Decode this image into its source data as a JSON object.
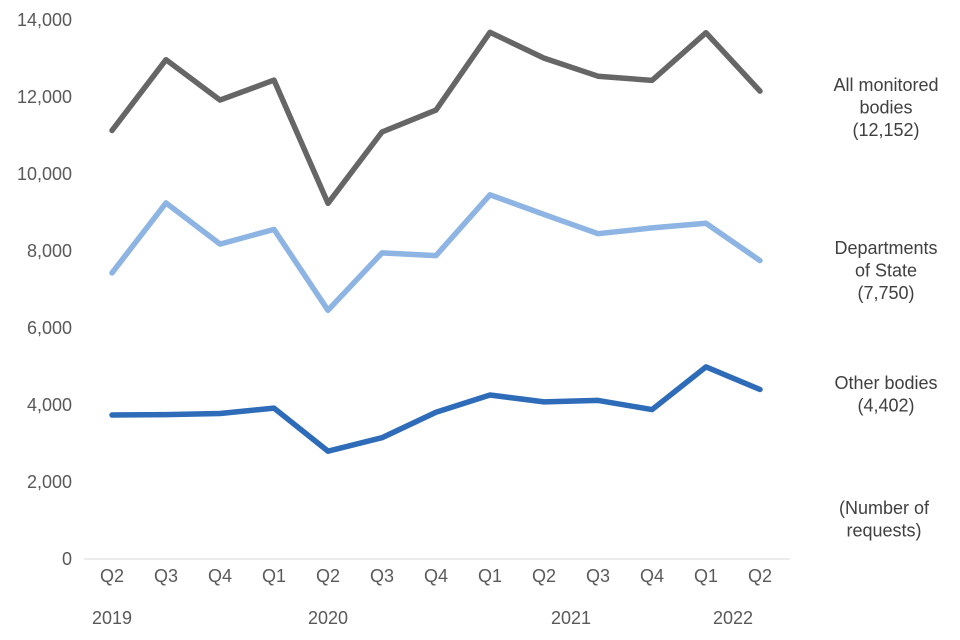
{
  "chart_data": {
    "type": "line",
    "categories": [
      "Q2",
      "Q3",
      "Q4",
      "Q1",
      "Q2",
      "Q3",
      "Q4",
      "Q1",
      "Q2",
      "Q3",
      "Q4",
      "Q1",
      "Q2"
    ],
    "years": [
      {
        "label": "2019",
        "start": 0,
        "end": 0
      },
      {
        "label": "2020",
        "start": 1,
        "end": 7
      },
      {
        "label": "2021",
        "start": 8,
        "end": 9
      },
      {
        "label": "2022",
        "start": 11,
        "end": 12
      }
    ],
    "ylim": [
      0,
      14000
    ],
    "yticks": [
      0,
      2000,
      4000,
      6000,
      8000,
      10000,
      12000,
      14000
    ],
    "ytick_labels": [
      "0",
      "2,000",
      "4,000",
      "6,000",
      "8,000",
      "10,000",
      "12,000",
      "14,000"
    ],
    "grid": false,
    "unit_label": [
      "(Number of",
      "requests)"
    ],
    "series": [
      {
        "key": "all",
        "label_lines": [
          "All monitored",
          "bodies",
          "(12,152)"
        ],
        "color": "#666666",
        "values": [
          11130,
          12970,
          11920,
          12440,
          9240,
          11090,
          11660,
          13680,
          13010,
          12540,
          12430,
          13670,
          12152
        ]
      },
      {
        "key": "dept",
        "label_lines": [
          "Departments",
          "of State",
          "(7,750)"
        ],
        "color": "#8db4e2",
        "values": [
          7430,
          9250,
          8180,
          8560,
          6460,
          7950,
          7880,
          9460,
          8950,
          8450,
          8600,
          8720,
          7750
        ]
      },
      {
        "key": "other",
        "label_lines": [
          "Other bodies",
          "(4,402)"
        ],
        "color": "#2e6bb8",
        "values": [
          3740,
          3750,
          3780,
          3920,
          2800,
          3150,
          3810,
          4260,
          4080,
          4120,
          3880,
          4990,
          4402
        ]
      }
    ]
  }
}
